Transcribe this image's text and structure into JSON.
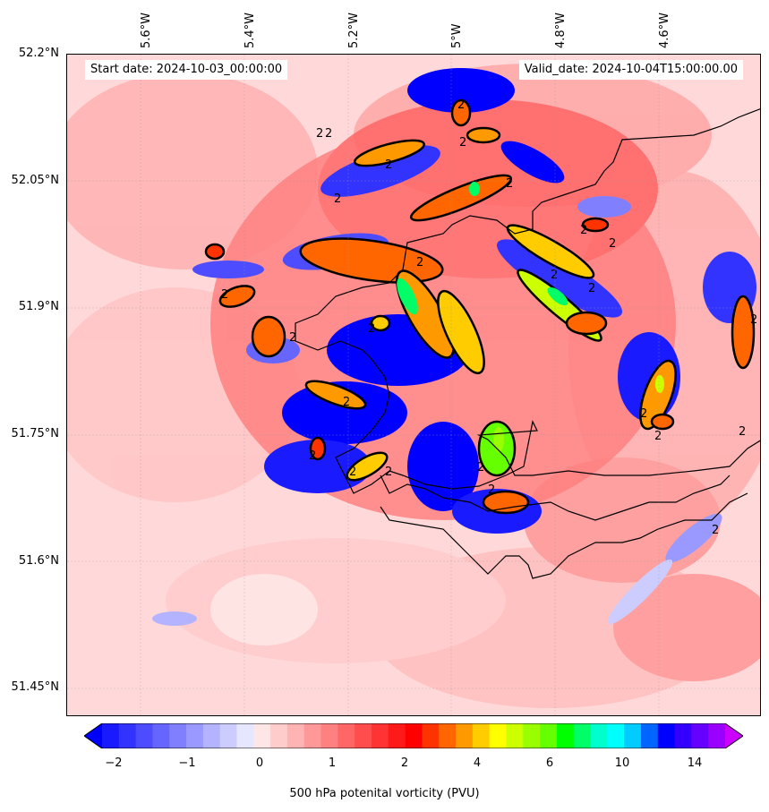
{
  "chart_data": {
    "type": "heatmap",
    "map_type": "filled contour map of potential vorticity over a coastal region with country/coastline outline",
    "start_date_text": "Start date: 2024-10-03_00:00:00",
    "valid_date_text": "Valid_date: 2024-10-04T15:00:00.00",
    "lat_ticks": [
      "52.2°N",
      "52.05°N",
      "51.9°N",
      "51.75°N",
      "51.6°N",
      "51.45°N"
    ],
    "lon_ticks": [
      "5.6°W",
      "5.4°W",
      "5.2°W",
      "5°W",
      "4.8°W",
      "4.6°W"
    ],
    "lat_range": [
      51.42,
      52.2
    ],
    "lon_range": [
      -5.75,
      -4.43
    ],
    "contour_line_level": 2,
    "contour_label": "2",
    "colorbar": {
      "label": "500 hPa potenital vorticity (PVU)",
      "tick_labels": [
        "−2",
        "−1",
        "0",
        "1",
        "2",
        "4",
        "6",
        "10",
        "14"
      ],
      "extend": "both",
      "colors": [
        "#1a1aff",
        "#3333ff",
        "#4d4dff",
        "#6666ff",
        "#8080ff",
        "#9999ff",
        "#b3b3ff",
        "#ccccff",
        "#e6e6ff",
        "#ffe6e6",
        "#ffcccc",
        "#ffb3b3",
        "#ff9999",
        "#ff8080",
        "#ff6666",
        "#ff4d4d",
        "#ff3333",
        "#ff1a1a",
        "#ff0000",
        "#ff3300",
        "#ff6600",
        "#ff9900",
        "#ffcc00",
        "#ffff00",
        "#ccff00",
        "#99ff00",
        "#66ff00",
        "#00ff00",
        "#00ff66",
        "#00ffcc",
        "#00ffff",
        "#00ccff",
        "#0066ff",
        "#0000ff",
        "#3300ff",
        "#6600ff",
        "#9900ff"
      ],
      "under_color": "#0000ff",
      "over_color": "#cc00ff"
    }
  }
}
